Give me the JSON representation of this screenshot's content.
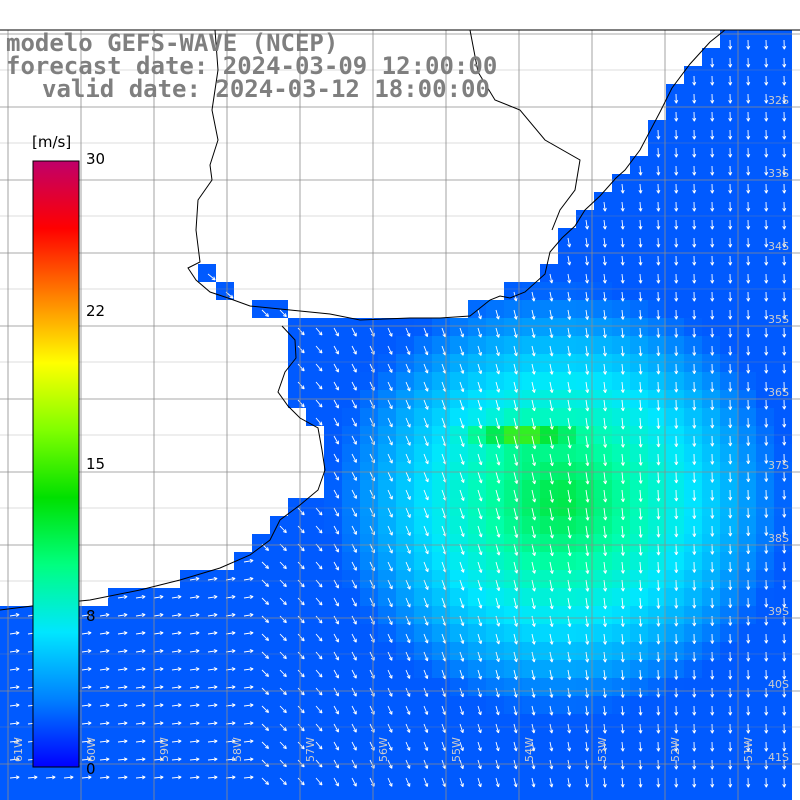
{
  "title": {
    "line1": "modelo GEFS-WAVE (NCEP)",
    "line2": "forecast date: 2024-03-09 12:00:00",
    "line3": "valid date: 2024-03-12 18:00:00"
  },
  "colorbar": {
    "units": "[m/s]",
    "ticks": [
      "30",
      "22",
      "15",
      "8",
      "0"
    ],
    "colors": [
      "#0000ff",
      "#0080ff",
      "#00e6ff",
      "#00ff80",
      "#00e000",
      "#80ff00",
      "#ffff00",
      "#ff8000",
      "#ff0000",
      "#c0006a"
    ]
  },
  "lat_labels": [
    "32S",
    "33S",
    "34S",
    "35S",
    "36S",
    "37S",
    "38S",
    "39S",
    "40S",
    "41S"
  ],
  "lon_labels": [
    "61W",
    "60W",
    "59W",
    "58W",
    "57W",
    "56W",
    "55W",
    "54W",
    "53W",
    "52W",
    "51W"
  ],
  "map_colors": {
    "land": "#ffffff",
    "coast": "#000000",
    "grid": "#8c8c8c",
    "arrow": "#ffffff"
  }
}
